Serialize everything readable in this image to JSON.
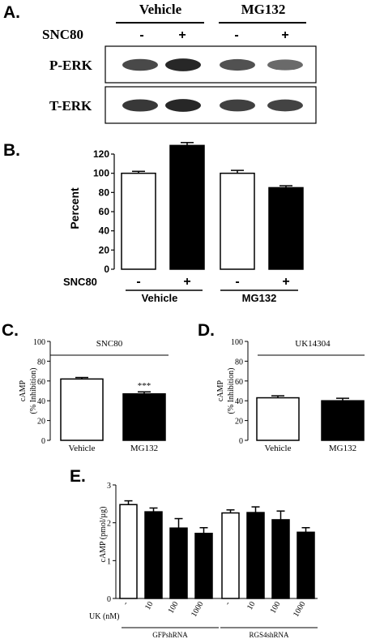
{
  "panelA": {
    "label": "A.",
    "groups": [
      "Vehicle",
      "MG132"
    ],
    "treatment_label": "SNC80",
    "treatment_signs": [
      "-",
      "+",
      "-",
      "+"
    ],
    "blots": [
      "P-ERK",
      "T-ERK"
    ],
    "band_intensity": {
      "P-ERK": [
        0.75,
        0.95,
        0.7,
        0.55
      ],
      "T-ERK": [
        0.85,
        0.95,
        0.8,
        0.78
      ]
    }
  },
  "chart_data": [
    {
      "panel": "B.",
      "type": "bar",
      "ylabel": "Percent",
      "ylim": [
        0,
        120
      ],
      "yticks": [
        0,
        20,
        40,
        60,
        80,
        100,
        120
      ],
      "treatment_label": "SNC80",
      "signs": [
        "-",
        "+",
        "-",
        "+"
      ],
      "groups": [
        "Vehicle",
        "MG132"
      ],
      "values": [
        100,
        129,
        100,
        85
      ],
      "errors": [
        2,
        3,
        3,
        2
      ],
      "fills": [
        "#ffffff",
        "#000000",
        "#ffffff",
        "#000000"
      ]
    },
    {
      "panel": "C.",
      "type": "bar",
      "title": "SNC80",
      "ylabel_line1": "cAMP",
      "ylabel_line2": "(% Inhibition)",
      "ylim": [
        0,
        100
      ],
      "yticks": [
        0,
        20,
        40,
        60,
        80,
        100
      ],
      "categories": [
        "Vehicle",
        "MG132"
      ],
      "values": [
        62,
        47
      ],
      "errors": [
        1.5,
        2
      ],
      "annotation": "***",
      "fills": [
        "#ffffff",
        "#000000"
      ]
    },
    {
      "panel": "D.",
      "type": "bar",
      "title": "UK14304",
      "ylabel_line1": "cAMP",
      "ylabel_line2": "(% Inhibition)",
      "ylim": [
        0,
        100
      ],
      "yticks": [
        0,
        20,
        40,
        60,
        80,
        100
      ],
      "categories": [
        "Vehicle",
        "MG132"
      ],
      "values": [
        43,
        40
      ],
      "errors": [
        2,
        2.5
      ],
      "fills": [
        "#ffffff",
        "#000000"
      ]
    },
    {
      "panel": "E.",
      "type": "bar",
      "ylabel": "cAMP (pmol/µg)",
      "ylim": [
        0,
        3
      ],
      "yticks": [
        0,
        1,
        2,
        3
      ],
      "dose_label": "UK (nM)",
      "doses": [
        "-",
        "10",
        "100",
        "1000",
        "-",
        "10",
        "100",
        "1000"
      ],
      "groups": [
        "GFPshRNA",
        "RGS4shRNA"
      ],
      "values": [
        2.48,
        2.29,
        1.86,
        1.72,
        2.26,
        2.27,
        2.08,
        1.75
      ],
      "errors": [
        0.1,
        0.1,
        0.25,
        0.15,
        0.08,
        0.15,
        0.23,
        0.12
      ],
      "fills": [
        "#ffffff",
        "#000000",
        "#000000",
        "#000000",
        "#ffffff",
        "#000000",
        "#000000",
        "#000000"
      ]
    }
  ]
}
